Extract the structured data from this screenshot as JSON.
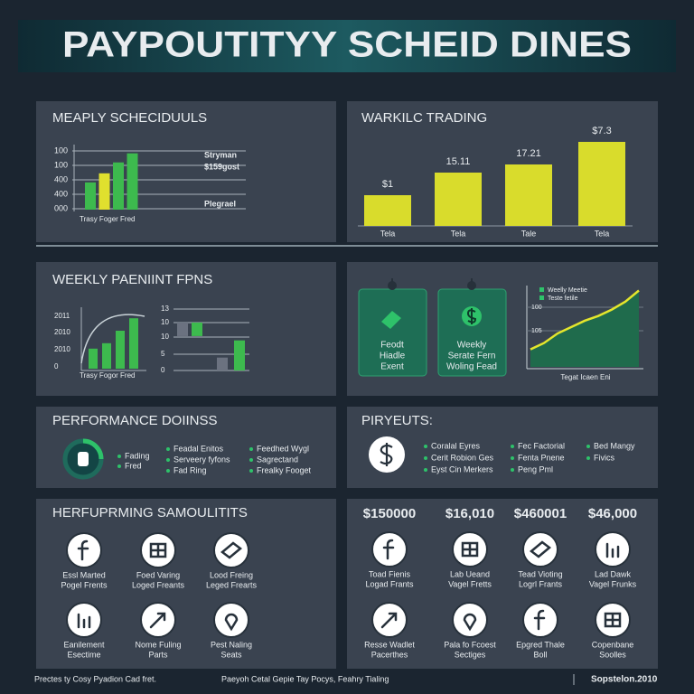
{
  "header": {
    "title": "PAYPOUTITYY SCHEID DINES"
  },
  "schedules": {
    "title": "MEAPLY SCHECIDUULS",
    "chart_data": {
      "type": "bar",
      "axis_labels": [
        "100",
        "100",
        "400",
        "400",
        "000"
      ],
      "values": [
        45,
        60,
        78,
        93
      ],
      "colors": [
        "#3dba4e",
        "#e0e02e",
        "#3dba4e",
        "#3dba4e"
      ],
      "ylim": [
        0,
        100
      ],
      "legend": [
        "Stryman",
        "$159gost",
        "Plegrael"
      ],
      "xlabel": "Trasy Foger Fred"
    }
  },
  "trading": {
    "title": "WARKILC TRADING",
    "chart_data": {
      "type": "bar",
      "categories": [
        "Tela",
        "Tela",
        "Tale",
        "Tela"
      ],
      "values": [
        34,
        59,
        68,
        93
      ],
      "bar_labels": [
        "$1",
        "15.11",
        "17.21",
        "$7.3"
      ],
      "color": "#d9dc2c",
      "ylim": [
        0,
        100
      ]
    }
  },
  "weekly": {
    "title": "WEEKLY PAENIINT FPNS",
    "left_chart": {
      "type": "bar",
      "axis_labels": [
        "2011",
        "2010",
        "2010",
        "0"
      ],
      "values": [
        37,
        47,
        70,
        93
      ],
      "color": "#3dba4e",
      "ylim": [
        0,
        100
      ]
    },
    "right_chart": {
      "type": "range-bar",
      "axis_labels": [
        "13",
        "10",
        "10",
        "5",
        "0"
      ],
      "bars": [
        [
          56,
          78
        ],
        [
          56,
          78
        ],
        [
          0,
          21
        ],
        [
          0,
          49
        ]
      ],
      "colors": [
        "#6b7280",
        "#3dba4e",
        "#6b7280",
        "#3dba4e"
      ],
      "ylim": [
        0,
        100
      ]
    },
    "xlabel": "Trasy Fogor Fred"
  },
  "cards": {
    "tags": [
      [
        "Feodt",
        "Hiadle",
        "Exent"
      ],
      [
        "Weekly",
        "Serate Fern",
        "Woling Fead"
      ]
    ],
    "chart_data": {
      "type": "area",
      "legend": [
        "Weelly Meetie",
        "Teste fetile"
      ],
      "axis_labels": [
        "100",
        "105"
      ],
      "values": [
        22,
        30,
        42,
        50,
        58,
        64,
        72,
        82,
        96
      ],
      "ylim": [
        0,
        100
      ],
      "xlabel": "Tegat Icaen Eni",
      "line_color": "#e4e62c",
      "fill_color": "#1f6b4c"
    }
  },
  "performance": {
    "title": "PERFORMANCE DOIINSS",
    "lists": [
      [
        "Fading",
        "Fred"
      ],
      [
        "Feadal Enitos",
        "Serveery fyfons",
        "Fad Ring"
      ],
      [
        "Feedhed Wygl",
        "Sagrectand",
        "Frealky Fooget"
      ]
    ]
  },
  "payouts": {
    "title": "PIRYEUTS:",
    "lists": [
      [
        "Coralal Eyres",
        "Cerit Robion Ges",
        "Eyst Cin Merkers"
      ],
      [
        "Fec Factorial",
        "Fenta Pnene",
        "Peng Pml"
      ],
      [
        "Bed Mangy",
        "Fivics"
      ]
    ]
  },
  "samples": {
    "title": "HERFUPRMING SAMOULITITS",
    "items": [
      [
        "Essl Marted",
        "Pogel Frents"
      ],
      [
        "Foed Varing",
        "Loged Freants"
      ],
      [
        "Lood Freing",
        "Leged Frearts"
      ],
      [
        "Eanilement",
        "Esectime"
      ],
      [
        "Nome Fuling",
        "Parts"
      ],
      [
        "Pest Naling",
        "Seats"
      ]
    ]
  },
  "amounts": {
    "values": [
      "$150000",
      "$16,010",
      "$460001",
      "$46,000"
    ],
    "items": [
      [
        "Toad Fienis",
        "Logad Frants"
      ],
      [
        "Lab Ueand",
        "Vagel Fretts"
      ],
      [
        "Tead Vioting",
        "Logrl Frants"
      ],
      [
        "Lad Dawk",
        "Vagel Frunks"
      ],
      [
        "Resse Wadlet",
        "Pacerthes"
      ],
      [
        "Pala fo Fcoest",
        "Sectiges"
      ],
      [
        "Epgred Thale",
        "Boll"
      ],
      [
        "Copenbane",
        "Soolles"
      ]
    ]
  },
  "footer": {
    "left": "Prectes ty Cosy Pyadion Cad fret.",
    "middle": "Paeyoh Cetal Gepie Tay Pocys, Feahry Tialing",
    "right": "Sopstelon.2010"
  }
}
